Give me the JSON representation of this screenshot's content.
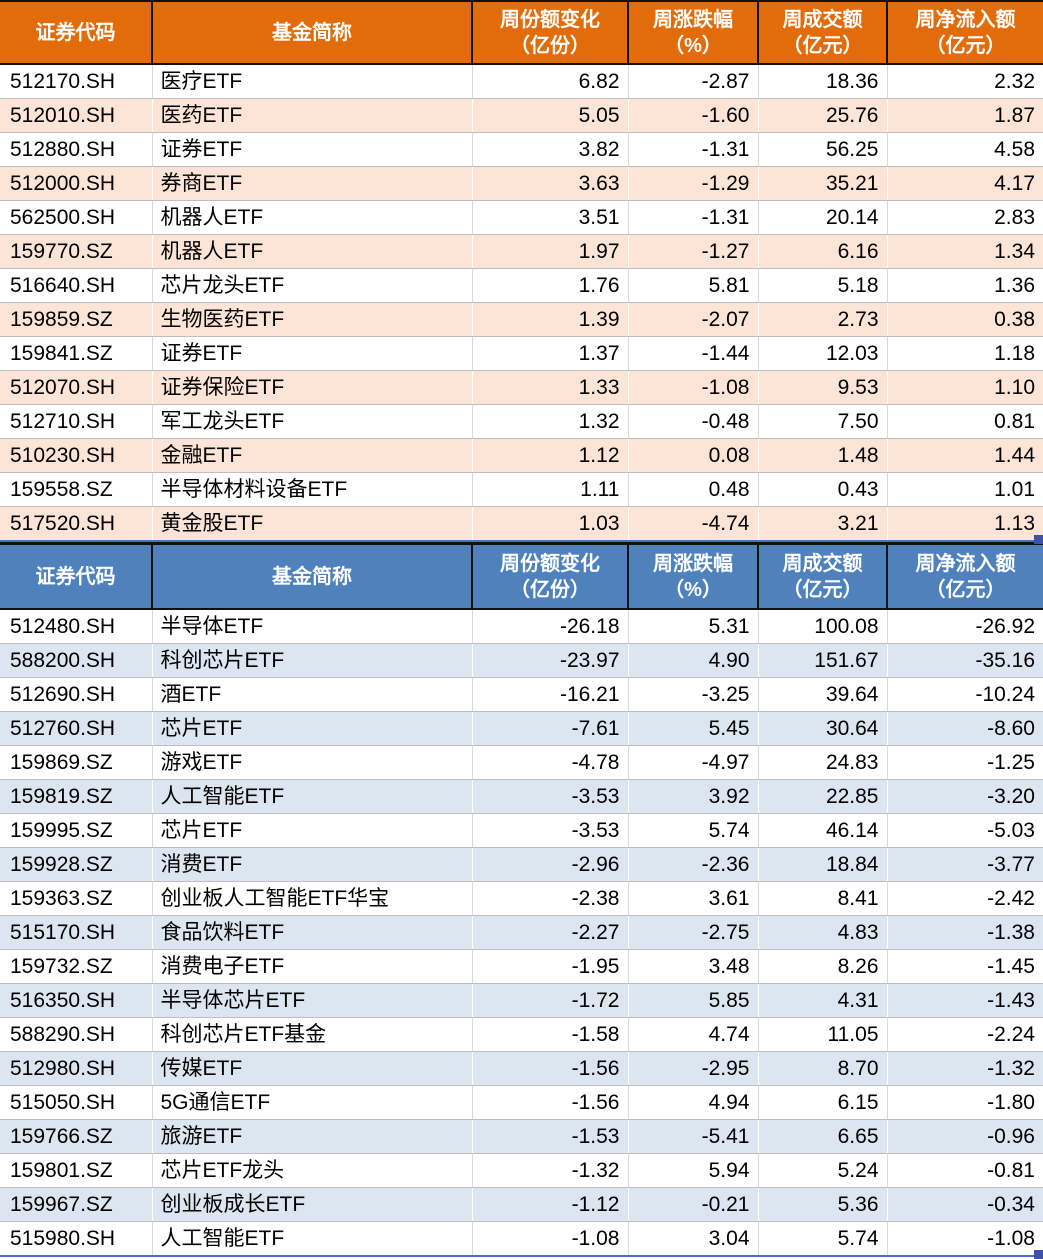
{
  "colors": {
    "header_orange": "#E26B0A",
    "row_tint_orange": "#FCE4D6",
    "header_blue": "#4F81BD",
    "row_tint_blue": "#DCE6F1",
    "header_text": "#FFFFFF",
    "body_text": "#000000",
    "grid_line": "#BFBFBF",
    "grid_line_vertical": "#D9D9D9",
    "header_border": "#111111",
    "selection_border": "#4472C4",
    "fill_handle": "#3F51A8"
  },
  "chart_data": [
    {
      "type": "table",
      "name": "weekly-share-increase-etfs",
      "theme": "orange",
      "columns": [
        "证券代码",
        "基金简称",
        "周份额变化（亿份）",
        "周涨跌幅（%）",
        "周成交额（亿元）",
        "周净流入额（亿元）"
      ],
      "rows": [
        [
          "512170.SH",
          "医疗ETF",
          6.82,
          -2.87,
          18.36,
          2.32
        ],
        [
          "512010.SH",
          "医药ETF",
          5.05,
          -1.6,
          25.76,
          1.87
        ],
        [
          "512880.SH",
          "证券ETF",
          3.82,
          -1.31,
          56.25,
          4.58
        ],
        [
          "512000.SH",
          "券商ETF",
          3.63,
          -1.29,
          35.21,
          4.17
        ],
        [
          "562500.SH",
          "机器人ETF",
          3.51,
          -1.31,
          20.14,
          2.83
        ],
        [
          "159770.SZ",
          "机器人ETF",
          1.97,
          -1.27,
          6.16,
          1.34
        ],
        [
          "516640.SH",
          "芯片龙头ETF",
          1.76,
          5.81,
          5.18,
          1.36
        ],
        [
          "159859.SZ",
          "生物医药ETF",
          1.39,
          -2.07,
          2.73,
          0.38
        ],
        [
          "159841.SZ",
          "证券ETF",
          1.37,
          -1.44,
          12.03,
          1.18
        ],
        [
          "512070.SH",
          "证券保险ETF",
          1.33,
          -1.08,
          9.53,
          1.1
        ],
        [
          "512710.SH",
          "军工龙头ETF",
          1.32,
          -0.48,
          7.5,
          0.81
        ],
        [
          "510230.SH",
          "金融ETF",
          1.12,
          0.08,
          1.48,
          1.44
        ],
        [
          "159558.SZ",
          "半导体材料设备ETF",
          1.11,
          0.48,
          0.43,
          1.01
        ],
        [
          "517520.SH",
          "黄金股ETF",
          1.03,
          -4.74,
          3.21,
          1.13
        ]
      ]
    },
    {
      "type": "table",
      "name": "weekly-share-decrease-etfs",
      "theme": "blue",
      "columns": [
        "证券代码",
        "基金简称",
        "周份额变化（亿份）",
        "周涨跌幅（%）",
        "周成交额（亿元）",
        "周净流入额（亿元）"
      ],
      "rows": [
        [
          "512480.SH",
          "半导体ETF",
          -26.18,
          5.31,
          100.08,
          -26.92
        ],
        [
          "588200.SH",
          "科创芯片ETF",
          -23.97,
          4.9,
          151.67,
          -35.16
        ],
        [
          "512690.SH",
          "酒ETF",
          -16.21,
          -3.25,
          39.64,
          -10.24
        ],
        [
          "512760.SH",
          "芯片ETF",
          -7.61,
          5.45,
          30.64,
          -8.6
        ],
        [
          "159869.SZ",
          "游戏ETF",
          -4.78,
          -4.97,
          24.83,
          -1.25
        ],
        [
          "159819.SZ",
          "人工智能ETF",
          -3.53,
          3.92,
          22.85,
          -3.2
        ],
        [
          "159995.SZ",
          "芯片ETF",
          -3.53,
          5.74,
          46.14,
          -5.03
        ],
        [
          "159928.SZ",
          "消费ETF",
          -2.96,
          -2.36,
          18.84,
          -3.77
        ],
        [
          "159363.SZ",
          "创业板人工智能ETF华宝",
          -2.38,
          3.61,
          8.41,
          -2.42
        ],
        [
          "515170.SH",
          "食品饮料ETF",
          -2.27,
          -2.75,
          4.83,
          -1.38
        ],
        [
          "159732.SZ",
          "消费电子ETF",
          -1.95,
          3.48,
          8.26,
          -1.45
        ],
        [
          "516350.SH",
          "半导体芯片ETF",
          -1.72,
          5.85,
          4.31,
          -1.43
        ],
        [
          "588290.SH",
          "科创芯片ETF基金",
          -1.58,
          4.74,
          11.05,
          -2.24
        ],
        [
          "512980.SH",
          "传媒ETF",
          -1.56,
          -2.95,
          8.7,
          -1.32
        ],
        [
          "515050.SH",
          "5G通信ETF",
          -1.56,
          4.94,
          6.15,
          -1.8
        ],
        [
          "159766.SZ",
          "旅游ETF",
          -1.53,
          -5.41,
          6.65,
          -0.96
        ],
        [
          "159801.SZ",
          "芯片ETF龙头",
          -1.32,
          5.94,
          5.24,
          -0.81
        ],
        [
          "159967.SZ",
          "创业板成长ETF",
          -1.12,
          -0.21,
          5.36,
          -0.34
        ],
        [
          "515980.SH",
          "人工智能ETF",
          -1.08,
          3.04,
          5.74,
          -1.08
        ]
      ]
    }
  ]
}
